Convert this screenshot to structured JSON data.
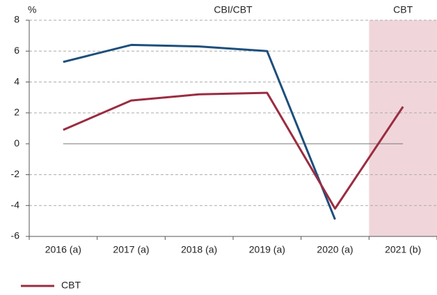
{
  "chart_data": {
    "type": "line",
    "y_unit": "%",
    "annotations": [
      {
        "text": "CBI/CBT"
      },
      {
        "text": "CBT",
        "shaded": "2021 (b)"
      }
    ],
    "categories": [
      "2016 (a)",
      "2017 (a)",
      "2018 (a)",
      "2019 (a)",
      "2020 (a)",
      "2021 (b)"
    ],
    "series": [
      {
        "color": "#1c4f7c",
        "values": [
          5.3,
          6.4,
          6.3,
          6.0,
          -4.9,
          null
        ]
      },
      {
        "name": "CBT",
        "color": "#9b2c40",
        "values": [
          0.9,
          2.8,
          3.2,
          3.3,
          -4.2,
          2.4
        ]
      }
    ],
    "ylim": [
      -6,
      8
    ],
    "yticks": [
      -6,
      -4,
      -2,
      0,
      2,
      4,
      6,
      8
    ],
    "grid": true,
    "legend": "bottom-left"
  }
}
